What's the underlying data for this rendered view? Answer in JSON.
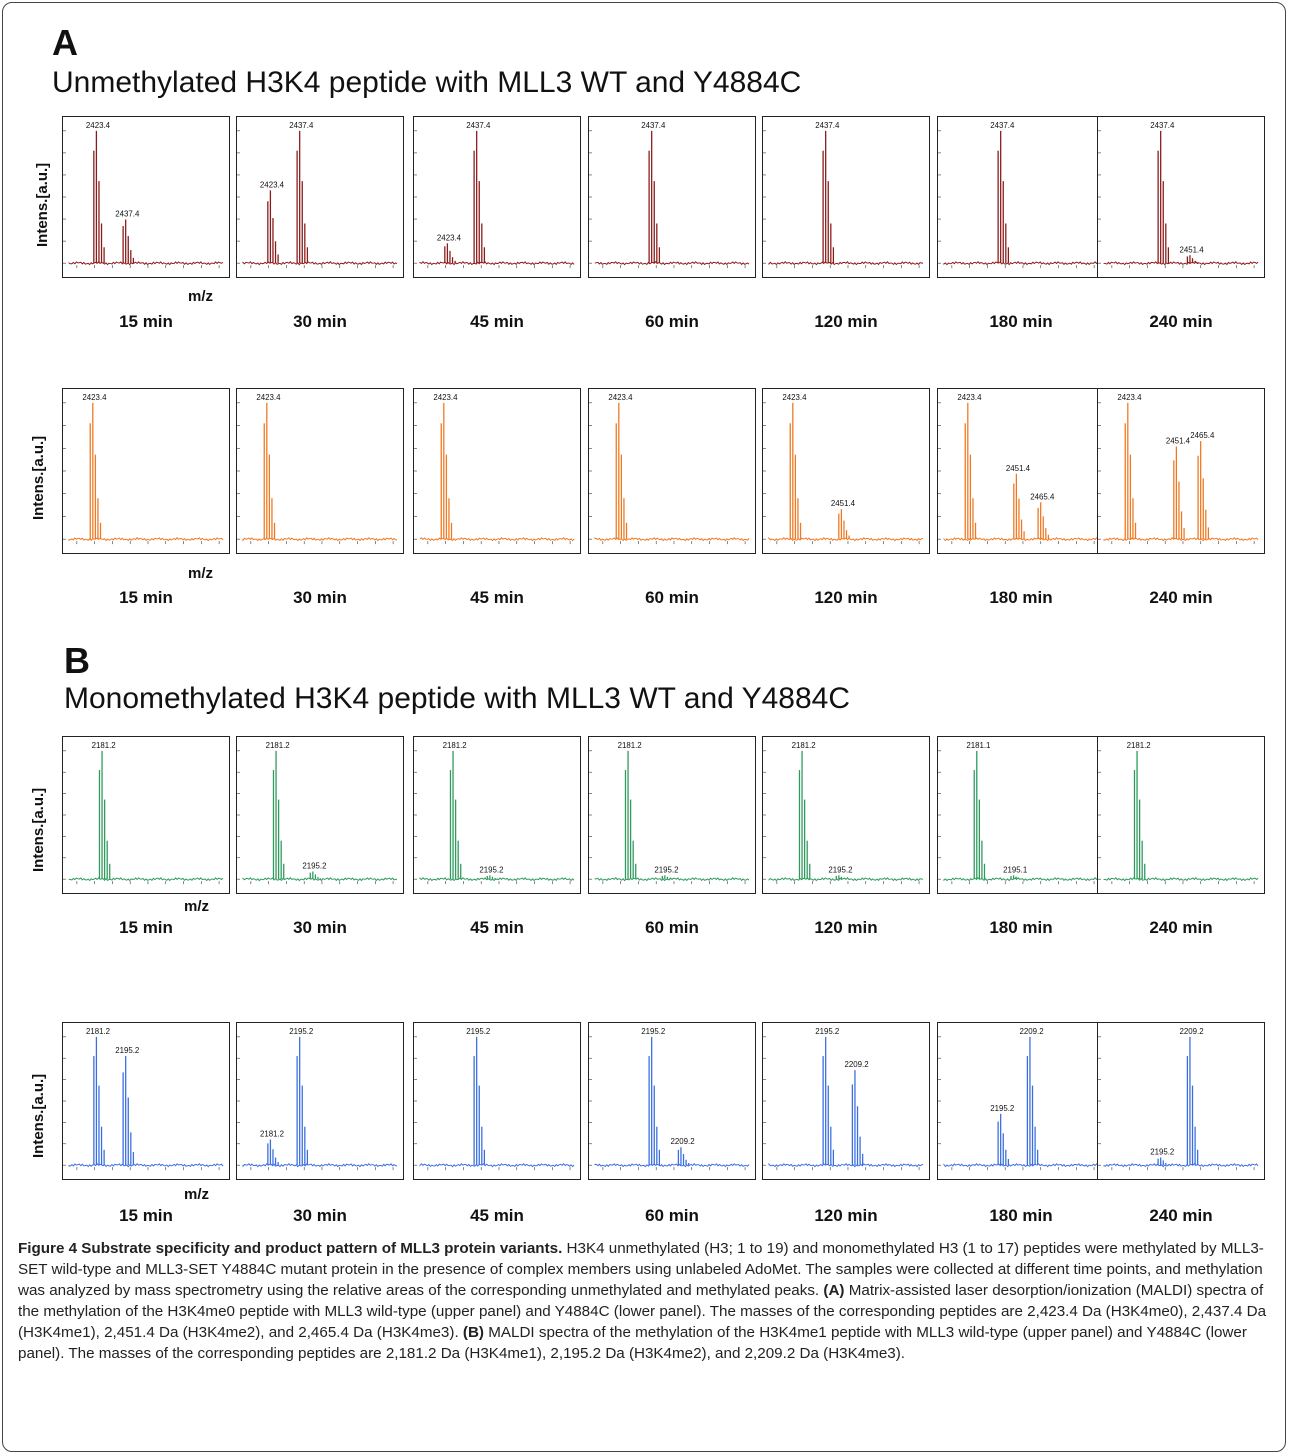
{
  "sections": [
    {
      "letter": "A",
      "title": "Unmethylated H3K4 peptide with MLL3 WT and Y4884C"
    },
    {
      "letter": "B",
      "title": "Monomethylated H3K4 peptide with MLL3 WT and Y4884C"
    }
  ],
  "axis": {
    "ylabel": "Intens.[a.u.]",
    "xlabel": "m/z"
  },
  "colors": {
    "A_wt": "#8b1a1a",
    "A_mut": "#f07820",
    "B_wt": "#2e9a5c",
    "B_mut": "#3a6ee0"
  },
  "chart_data": [
    {
      "type": "line",
      "section": "A",
      "row": "wild-type",
      "color": "#8b1a1a",
      "panels": [
        {
          "time": "15 min",
          "peaks": [
            {
              "mz": 2423.4,
              "rel": 1.0,
              "label": "2423.4"
            },
            {
              "mz": 2437.4,
              "rel": 0.33,
              "label": "2437.4"
            }
          ]
        },
        {
          "time": "30 min",
          "peaks": [
            {
              "mz": 2423.4,
              "rel": 0.55,
              "label": "2423.4"
            },
            {
              "mz": 2437.4,
              "rel": 1.0,
              "label": "2437.4"
            }
          ]
        },
        {
          "time": "45 min",
          "peaks": [
            {
              "mz": 2423.4,
              "rel": 0.15,
              "label": "2423.4"
            },
            {
              "mz": 2437.4,
              "rel": 1.0,
              "label": "2437.4"
            }
          ]
        },
        {
          "time": "60 min",
          "peaks": [
            {
              "mz": 2437.4,
              "rel": 1.0,
              "label": "2437.4"
            }
          ]
        },
        {
          "time": "120 min",
          "peaks": [
            {
              "mz": 2437.4,
              "rel": 1.0,
              "label": "2437.4"
            }
          ]
        },
        {
          "time": "180 min",
          "peaks": [
            {
              "mz": 2437.4,
              "rel": 1.0,
              "label": "2437.4"
            }
          ]
        },
        {
          "time": "240 min",
          "peaks": [
            {
              "mz": 2437.4,
              "rel": 1.0,
              "label": "2437.4"
            },
            {
              "mz": 2451.4,
              "rel": 0.06,
              "label": "2451.4"
            }
          ]
        }
      ]
    },
    {
      "type": "line",
      "section": "A",
      "row": "Y4884C",
      "color": "#f07820",
      "panels": [
        {
          "time": "15 min",
          "peaks": [
            {
              "mz": 2423.4,
              "rel": 1.0,
              "label": "2423.4"
            }
          ]
        },
        {
          "time": "30 min",
          "peaks": [
            {
              "mz": 2423.4,
              "rel": 1.0,
              "label": "2423.4"
            }
          ]
        },
        {
          "time": "45 min",
          "peaks": [
            {
              "mz": 2423.4,
              "rel": 1.0,
              "label": "2423.4"
            }
          ]
        },
        {
          "time": "60 min",
          "peaks": [
            {
              "mz": 2423.4,
              "rel": 1.0,
              "label": "2423.4"
            }
          ]
        },
        {
          "time": "120 min",
          "peaks": [
            {
              "mz": 2423.4,
              "rel": 1.0,
              "label": "2423.4"
            },
            {
              "mz": 2451.4,
              "rel": 0.22,
              "label": "2451.4"
            }
          ]
        },
        {
          "time": "180 min",
          "peaks": [
            {
              "mz": 2423.4,
              "rel": 1.0,
              "label": "2423.4"
            },
            {
              "mz": 2451.4,
              "rel": 0.48,
              "label": "2451.4"
            },
            {
              "mz": 2465.4,
              "rel": 0.27,
              "label": "2465.4"
            }
          ]
        },
        {
          "time": "240 min",
          "peaks": [
            {
              "mz": 2423.4,
              "rel": 1.0,
              "label": "2423.4"
            },
            {
              "mz": 2451.4,
              "rel": 0.68,
              "label": "2451.4"
            },
            {
              "mz": 2465.4,
              "rel": 0.72,
              "label": "2465.4"
            }
          ]
        }
      ]
    },
    {
      "type": "line",
      "section": "B",
      "row": "wild-type",
      "color": "#2e9a5c",
      "panels": [
        {
          "time": "15 min",
          "peaks": [
            {
              "mz": 2181.2,
              "rel": 1.0,
              "label": "2181.2"
            }
          ]
        },
        {
          "time": "30 min",
          "peaks": [
            {
              "mz": 2181.2,
              "rel": 1.0,
              "label": "2181.2"
            },
            {
              "mz": 2195.2,
              "rel": 0.06,
              "label": "2195.2"
            }
          ]
        },
        {
          "time": "45 min",
          "peaks": [
            {
              "mz": 2181.2,
              "rel": 1.0,
              "label": "2181.2"
            },
            {
              "mz": 2195.2,
              "rel": 0.03,
              "label": "2195.2"
            }
          ]
        },
        {
          "time": "60 min",
          "peaks": [
            {
              "mz": 2181.2,
              "rel": 1.0,
              "label": "2181.2"
            },
            {
              "mz": 2195.2,
              "rel": 0.03,
              "label": "2195.2"
            }
          ]
        },
        {
          "time": "120 min",
          "peaks": [
            {
              "mz": 2181.2,
              "rel": 1.0,
              "label": "2181.2"
            },
            {
              "mz": 2195.2,
              "rel": 0.03,
              "label": "2195.2"
            }
          ]
        },
        {
          "time": "180 min",
          "peaks": [
            {
              "mz": 2181.1,
              "rel": 1.0,
              "label": "2181.1"
            },
            {
              "mz": 2195.1,
              "rel": 0.03,
              "label": "2195.1"
            }
          ]
        },
        {
          "time": "240 min",
          "peaks": [
            {
              "mz": 2181.2,
              "rel": 1.0,
              "label": "2181.2"
            }
          ]
        }
      ]
    },
    {
      "type": "line",
      "section": "B",
      "row": "Y4884C",
      "color": "#3a6ee0",
      "panels": [
        {
          "time": "15 min",
          "peaks": [
            {
              "mz": 2181.2,
              "rel": 1.0,
              "label": "2181.2"
            },
            {
              "mz": 2195.2,
              "rel": 0.85,
              "label": "2195.2"
            }
          ]
        },
        {
          "time": "30 min",
          "peaks": [
            {
              "mz": 2181.2,
              "rel": 0.2,
              "label": "2181.2"
            },
            {
              "mz": 2195.2,
              "rel": 1.0,
              "label": "2195.2"
            }
          ]
        },
        {
          "time": "45 min",
          "peaks": [
            {
              "mz": 2195.2,
              "rel": 1.0,
              "label": "2195.2"
            }
          ]
        },
        {
          "time": "60 min",
          "peaks": [
            {
              "mz": 2195.2,
              "rel": 1.0,
              "label": "2195.2"
            },
            {
              "mz": 2209.2,
              "rel": 0.14,
              "label": "2209.2"
            }
          ]
        },
        {
          "time": "120 min",
          "peaks": [
            {
              "mz": 2195.2,
              "rel": 1.0,
              "label": "2195.2"
            },
            {
              "mz": 2209.2,
              "rel": 0.74,
              "label": "2209.2"
            }
          ]
        },
        {
          "time": "180 min",
          "peaks": [
            {
              "mz": 2195.2,
              "rel": 0.4,
              "label": "2195.2"
            },
            {
              "mz": 2209.2,
              "rel": 1.0,
              "label": "2209.2"
            }
          ]
        },
        {
          "time": "240 min",
          "peaks": [
            {
              "mz": 2195.2,
              "rel": 0.06,
              "label": "2195.2"
            },
            {
              "mz": 2209.2,
              "rel": 1.0,
              "label": "2209.2"
            }
          ]
        }
      ]
    }
  ],
  "caption": {
    "title": "Figure 4 Substrate specificity and product pattern of MLL3 protein variants.",
    "body": "H3K4 unmethylated (H3; 1 to 19) and monomethylated H3 (1 to 17) peptides were methylated by MLL3-SET wild-type and MLL3-SET Y4884C mutant protein in the presence of complex members using unlabeled AdoMet. The samples were collected at different time points, and methylation was analyzed by mass spectrometry using the relative areas of the corresponding unmethylated and methylated peaks.",
    "partA_label": "(A)",
    "partA": "Matrix-assisted laser desorption/ionization (MALDI) spectra of the methylation of the H3K4me0 peptide with MLL3 wild-type (upper panel) and Y4884C (lower panel). The masses of the corresponding peptides are 2,423.4 Da (H3K4me0), 2,437.4 Da (H3K4me1), 2,451.4 Da (H3K4me2), and 2,465.4 Da (H3K4me3).",
    "partB_label": "(B)",
    "partB": "MALDI spectra of the methylation of the H3K4me1 peptide with MLL3 wild-type (upper panel) and Y4884C (lower panel). The masses of the corresponding peptides are 2,181.2 Da (H3K4me1), 2,195.2 Da (H3K4me2), and 2,209.2 Da (H3K4me3)."
  }
}
